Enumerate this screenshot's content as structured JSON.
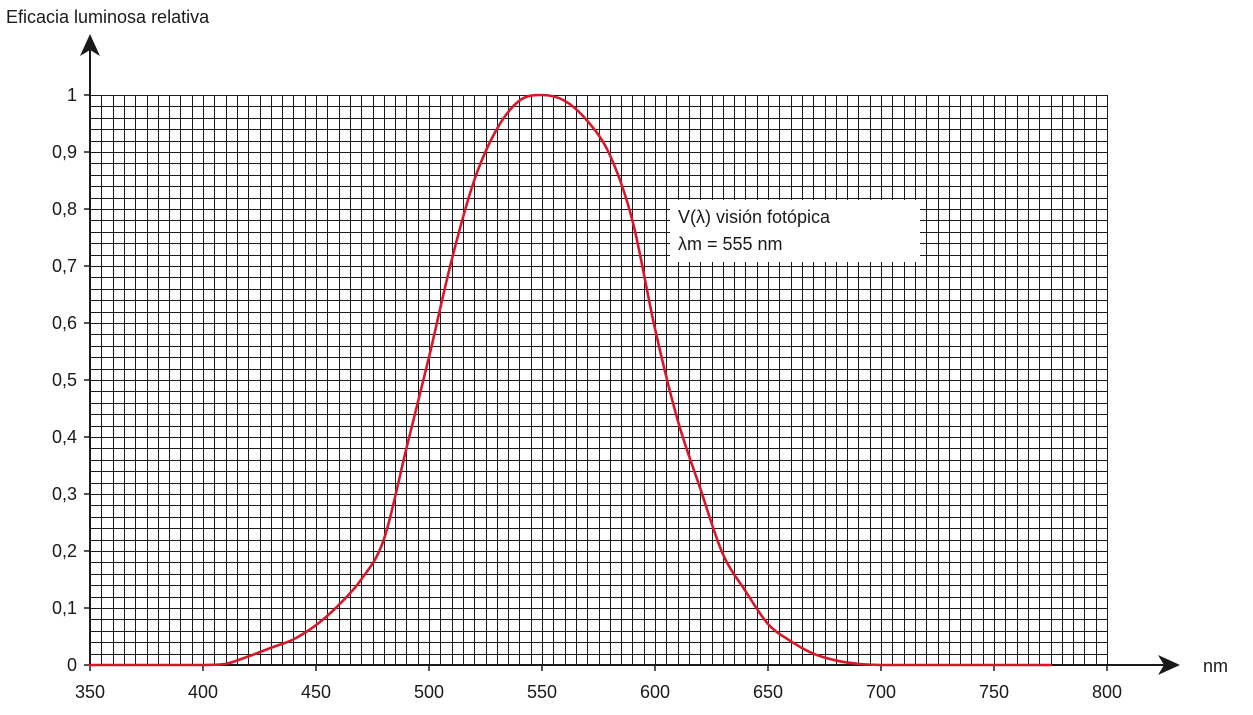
{
  "chart_data": {
    "type": "line",
    "title": "",
    "ylabel": "Eficacia luminosa relativa",
    "xlabel": "nm",
    "xlim": [
      350,
      800
    ],
    "ylim": [
      0,
      1
    ],
    "x_ticks": [
      350,
      400,
      450,
      500,
      550,
      600,
      650,
      700,
      750,
      800
    ],
    "y_ticks": [
      0,
      0.1,
      0.2,
      0.3,
      0.4,
      0.5,
      0.6,
      0.7,
      0.8,
      0.9,
      1
    ],
    "y_tick_labels": [
      "0",
      "0,1",
      "0,2",
      "0,3",
      "0,4",
      "0,5",
      "0,6",
      "0,7",
      "0,8",
      "0,9",
      "1"
    ],
    "x_tick_labels": [
      "350",
      "400",
      "450",
      "500",
      "550",
      "600",
      "650",
      "700",
      "750",
      "800"
    ],
    "grid": true,
    "grid_minor_x_step": 5,
    "grid_minor_y_step": 0.02,
    "legend": "none",
    "colors": {
      "curve": "#d7182a",
      "grid": "#1a1a1a",
      "axis": "#1a1a1a"
    },
    "annotation": {
      "line1": "V(λ) visión fotópica",
      "line2": "λm = 555 nm"
    },
    "series": [
      {
        "x": [
          350,
          360,
          370,
          380,
          390,
          400,
          410,
          420,
          430,
          440,
          450,
          460,
          470,
          480,
          490,
          500,
          510,
          520,
          530,
          540,
          550,
          560,
          570,
          580,
          590,
          600,
          610,
          620,
          630,
          640,
          650,
          660,
          670,
          680,
          690,
          700,
          710,
          720,
          730,
          740,
          750,
          760,
          770,
          775
        ],
        "y": [
          0,
          0,
          0,
          0,
          0,
          0,
          0.002,
          0.015,
          0.03,
          0.045,
          0.07,
          0.105,
          0.15,
          0.22,
          0.38,
          0.54,
          0.71,
          0.85,
          0.94,
          0.99,
          1.0,
          0.99,
          0.955,
          0.895,
          0.78,
          0.59,
          0.43,
          0.31,
          0.195,
          0.13,
          0.072,
          0.042,
          0.02,
          0.008,
          0.002,
          0,
          0,
          0,
          0,
          0,
          0,
          0,
          0,
          0
        ]
      }
    ]
  }
}
